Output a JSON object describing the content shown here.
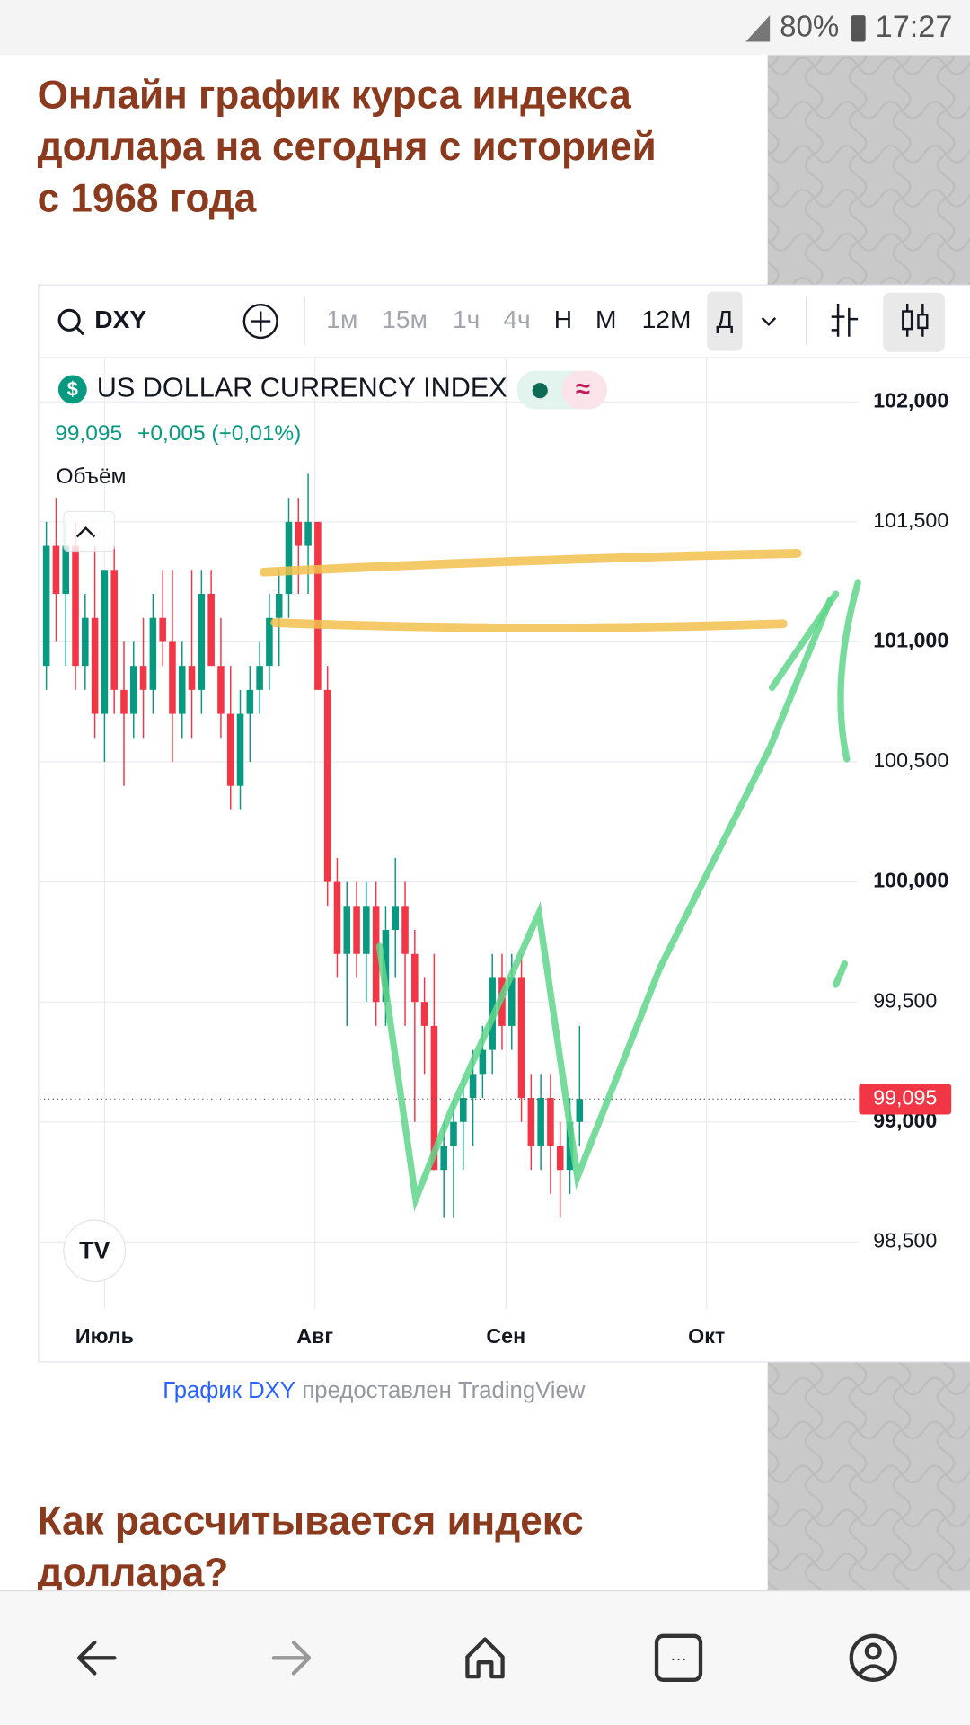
{
  "status_bar": {
    "battery": "80%",
    "time": "17:27"
  },
  "article": {
    "title_lines": [
      "Онлайн график курса индекса",
      "доллара на сегодня с историей",
      "с 1968 года"
    ],
    "heading_lines": [
      "Как рассчитывается индекс",
      "доллара?"
    ]
  },
  "widget": {
    "symbol": "DXY",
    "intervals": [
      "1м",
      "15м",
      "1ч",
      "4ч",
      "Н",
      "М",
      "12М",
      "Д"
    ],
    "quote": "99,095",
    "change": "+0,005 (+0,01%)",
    "volume_label": "Объём"
  },
  "chart_data": {
    "type": "candlestick",
    "title": "US DOLLAR CURRENCY INDEX",
    "x": [
      0,
      1,
      2,
      3,
      4,
      5,
      6,
      7,
      8,
      9,
      10,
      11,
      12,
      13,
      14,
      15,
      16,
      17,
      18,
      19,
      20,
      21,
      22,
      23,
      24,
      25,
      26,
      27,
      28,
      29,
      30,
      31,
      32,
      33,
      34,
      35,
      36,
      37,
      38,
      39,
      40,
      41,
      42,
      43,
      44,
      45,
      46,
      47,
      48,
      49,
      50,
      51,
      52,
      53,
      54,
      55
    ],
    "open": [
      100.9,
      101.4,
      101.2,
      101.4,
      100.9,
      101.1,
      100.7,
      101.3,
      100.8,
      100.7,
      100.9,
      100.8,
      101.1,
      101.0,
      100.7,
      100.9,
      100.8,
      101.2,
      100.9,
      100.7,
      100.4,
      100.7,
      100.8,
      100.9,
      101.1,
      101.2,
      101.5,
      101.4,
      101.5,
      100.8,
      100.0,
      99.7,
      99.9,
      99.7,
      99.9,
      99.5,
      99.8,
      99.9,
      99.7,
      99.5,
      99.4,
      98.8,
      98.9,
      99.0,
      99.1,
      99.2,
      99.3,
      99.6,
      99.4,
      99.6,
      99.1,
      98.9,
      99.1,
      98.9,
      98.8,
      99.0
    ],
    "high": [
      101.5,
      101.6,
      101.5,
      101.5,
      101.2,
      101.4,
      101.3,
      101.4,
      101.0,
      101.0,
      101.1,
      101.2,
      101.3,
      101.3,
      101.0,
      101.3,
      101.3,
      101.3,
      101.1,
      100.9,
      100.8,
      100.9,
      101.0,
      101.2,
      101.3,
      101.6,
      101.6,
      101.7,
      101.5,
      100.9,
      100.1,
      100.0,
      100.0,
      100.0,
      100.0,
      99.9,
      100.1,
      100.0,
      99.8,
      99.6,
      99.7,
      99.0,
      99.1,
      99.2,
      99.3,
      99.4,
      99.7,
      99.7,
      99.7,
      99.7,
      99.2,
      99.2,
      99.2,
      99.0,
      99.1,
      99.4
    ],
    "low": [
      100.8,
      101.0,
      100.9,
      100.8,
      100.8,
      100.6,
      100.5,
      100.7,
      100.4,
      100.6,
      100.6,
      100.7,
      100.9,
      100.5,
      100.6,
      100.6,
      100.7,
      100.9,
      100.6,
      100.3,
      100.3,
      100.5,
      100.7,
      100.8,
      100.9,
      101.1,
      101.2,
      101.2,
      100.8,
      99.9,
      99.6,
      99.4,
      99.6,
      99.5,
      99.4,
      99.4,
      99.6,
      99.4,
      99.0,
      99.2,
      98.8,
      98.6,
      98.6,
      98.8,
      98.9,
      99.1,
      99.2,
      99.3,
      99.3,
      99.0,
      98.8,
      98.8,
      98.7,
      98.6,
      98.7,
      98.9
    ],
    "close": [
      101.4,
      101.2,
      101.4,
      100.9,
      101.1,
      100.7,
      101.3,
      100.8,
      100.7,
      100.9,
      100.8,
      101.1,
      101.0,
      100.7,
      100.9,
      100.8,
      101.2,
      100.9,
      100.7,
      100.4,
      100.7,
      100.8,
      100.9,
      101.1,
      101.2,
      101.5,
      101.4,
      101.5,
      100.8,
      100.0,
      99.7,
      99.9,
      99.7,
      99.9,
      99.5,
      99.8,
      99.9,
      99.7,
      99.5,
      99.4,
      98.8,
      98.9,
      99.0,
      99.1,
      99.2,
      99.3,
      99.6,
      99.4,
      99.6,
      99.1,
      98.9,
      99.1,
      98.9,
      98.8,
      99.0,
      99.095
    ],
    "up_color": "#089981",
    "down_color": "#f23645",
    "xlim": [
      -0.7,
      83.7
    ],
    "xticks": [
      {
        "value": 6.0,
        "label": "Июль"
      },
      {
        "value": 27.7,
        "label": "Авг"
      },
      {
        "value": 47.4,
        "label": "Сен"
      },
      {
        "value": 68.1,
        "label": "Окт"
      }
    ],
    "ylim": [
      98.22,
      102.18
    ],
    "yticks": [
      {
        "value": 98.5,
        "label": "98,500"
      },
      {
        "value": 99,
        "label": "99,000"
      },
      {
        "value": 99.5,
        "label": "99,500"
      },
      {
        "value": 100,
        "label": "100,000"
      },
      {
        "value": 100.5,
        "label": "100,500"
      },
      {
        "value": 101,
        "label": "101,000"
      },
      {
        "value": 101.5,
        "label": "101,500"
      },
      {
        "value": 102,
        "label": "102,000"
      }
    ],
    "last_price": {
      "value": 99.095,
      "label": "99,095"
    },
    "grid": true
  },
  "caption": {
    "link": "График DXY",
    "text": "предоставлен TradingView"
  }
}
